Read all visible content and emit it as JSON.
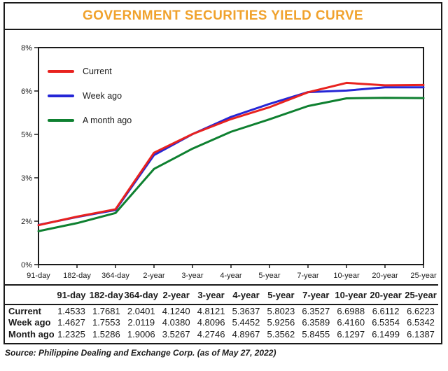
{
  "title": "GOVERNMENT SECURITIES YIELD CURVE",
  "title_color": "#F0A22D",
  "source": "Source: Philippine Dealing and Exchange Corp. (as of May 27, 2022)",
  "chart_data": {
    "type": "line",
    "title": "GOVERNMENT SECURITIES YIELD CURVE",
    "categories": [
      "91-day",
      "182-day",
      "364-day",
      "2-year",
      "3-year",
      "4-year",
      "5-year",
      "7-year",
      "10-year",
      "20-year",
      "25-year"
    ],
    "series": [
      {
        "name": "Current",
        "color": "#E8221F",
        "values": [
          1.4533,
          1.7681,
          2.0401,
          4.124,
          4.8121,
          5.3637,
          5.8023,
          6.3527,
          6.6988,
          6.6112,
          6.6223
        ]
      },
      {
        "name": "Week ago",
        "color": "#2526D6",
        "values": [
          1.4627,
          1.7553,
          2.0119,
          4.038,
          4.8096,
          5.4452,
          5.9256,
          6.3589,
          6.416,
          6.5354,
          6.5342
        ]
      },
      {
        "name": "A month ago",
        "color": "#0E8030",
        "values": [
          1.2325,
          1.5286,
          1.9006,
          3.5267,
          4.2746,
          4.8967,
          5.3562,
          5.8455,
          6.1297,
          6.1499,
          6.1387
        ]
      }
    ],
    "xlabel": "",
    "ylabel": "",
    "ylim": [
      0,
      8
    ],
    "y_ticks": [
      {
        "label": "0%",
        "value": 0
      },
      {
        "label": "2%",
        "value": 1.6
      },
      {
        "label": "3%",
        "value": 3.2
      },
      {
        "label": "5%",
        "value": 4.8
      },
      {
        "label": "6%",
        "value": 6.4
      },
      {
        "label": "8%",
        "value": 8
      }
    ],
    "grid": false,
    "legend_position": "top-left"
  },
  "table": {
    "columns": [
      "",
      "91-day",
      "182-day",
      "364-day",
      "2-year",
      "3-year",
      "4-year",
      "5-year",
      "7-year",
      "10-year",
      "20-year",
      "25-year"
    ],
    "rows": [
      {
        "label": "Current",
        "values": [
          "1.4533",
          "1.7681",
          "2.0401",
          "4.1240",
          "4.8121",
          "5.3637",
          "5.8023",
          "6.3527",
          "6.6988",
          "6.6112",
          "6.6223"
        ]
      },
      {
        "label": "Week ago",
        "values": [
          "1.4627",
          "1.7553",
          "2.0119",
          "4.0380",
          "4.8096",
          "5.4452",
          "5.9256",
          "6.3589",
          "6.4160",
          "6.5354",
          "6.5342"
        ]
      },
      {
        "label": "Month ago",
        "values": [
          "1.2325",
          "1.5286",
          "1.9006",
          "3.5267",
          "4.2746",
          "4.8967",
          "5.3562",
          "5.8455",
          "6.1297",
          "6.1499",
          "6.1387"
        ]
      }
    ]
  }
}
